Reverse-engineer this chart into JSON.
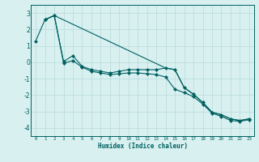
{
  "xlabel": "Humidex (Indice chaleur)",
  "bg_color": "#d8f0f0",
  "line_color": "#006060",
  "grid_color": "#b8dada",
  "xlim": [
    -0.5,
    23.5
  ],
  "ylim": [
    -4.5,
    3.5
  ],
  "yticks": [
    -4,
    -3,
    -2,
    -1,
    0,
    1,
    2,
    3
  ],
  "xticks": [
    0,
    1,
    2,
    3,
    4,
    5,
    6,
    7,
    8,
    9,
    10,
    11,
    12,
    13,
    14,
    15,
    16,
    17,
    18,
    19,
    20,
    21,
    22,
    23
  ],
  "line1_x": [
    0,
    1,
    2,
    3,
    4,
    5,
    6,
    7,
    8,
    9,
    10,
    11,
    12,
    13,
    14,
    15,
    16,
    17,
    18,
    19,
    20,
    21,
    22,
    23
  ],
  "line1_y": [
    1.3,
    2.6,
    2.85,
    0.05,
    0.4,
    -0.25,
    -0.45,
    -0.55,
    -0.65,
    -0.55,
    -0.45,
    -0.45,
    -0.45,
    -0.45,
    -0.35,
    -0.45,
    -1.55,
    -1.95,
    -2.45,
    -3.05,
    -3.2,
    -3.45,
    -3.55,
    -3.45
  ],
  "line2_x": [
    1,
    2,
    3,
    4,
    5,
    6,
    7,
    8,
    9,
    10,
    11,
    12,
    13,
    14,
    15,
    16,
    17,
    18,
    19,
    20,
    21,
    22,
    23
  ],
  "line2_y": [
    2.6,
    2.85,
    -0.05,
    0.1,
    -0.3,
    -0.55,
    -0.65,
    -0.75,
    -0.7,
    -0.65,
    -0.65,
    -0.7,
    -0.75,
    -0.9,
    -1.65,
    -1.85,
    -2.1,
    -2.55,
    -3.1,
    -3.3,
    -3.55,
    -3.6,
    -3.5
  ],
  "line3_x": [
    1,
    2,
    14,
    15,
    16,
    17,
    18,
    19,
    20,
    21,
    22,
    23
  ],
  "line3_y": [
    2.6,
    2.85,
    -0.35,
    -0.45,
    -1.55,
    -1.95,
    -2.45,
    -3.05,
    -3.2,
    -3.45,
    -3.55,
    -3.45
  ]
}
